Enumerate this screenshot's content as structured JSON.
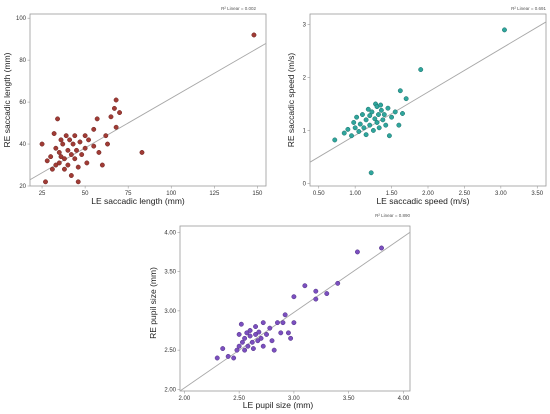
{
  "chart_data": [
    {
      "type": "scatter",
      "title": "",
      "xlabel": "LE saccadic length (mm)",
      "ylabel": "RE saccadic length (mm)",
      "r2_label": "R² Linear = 0.002",
      "xlim": [
        18,
        155
      ],
      "ylim": [
        20,
        102
      ],
      "xticks": [
        25,
        50,
        75,
        100,
        125,
        150
      ],
      "yticks": [
        20,
        40,
        60,
        80,
        100
      ],
      "marker_color": "#a03b35",
      "marker_edge": "#6e2420",
      "fit_line": {
        "x": [
          18,
          155
        ],
        "y": [
          23,
          88
        ]
      },
      "points": [
        [
          25,
          40
        ],
        [
          27,
          22
        ],
        [
          28,
          32
        ],
        [
          30,
          34
        ],
        [
          31,
          28
        ],
        [
          32,
          45
        ],
        [
          33,
          38
        ],
        [
          33,
          30
        ],
        [
          34,
          52
        ],
        [
          35,
          36
        ],
        [
          35,
          31
        ],
        [
          36,
          42
        ],
        [
          36,
          34
        ],
        [
          37,
          40
        ],
        [
          38,
          33
        ],
        [
          38,
          28
        ],
        [
          39,
          44
        ],
        [
          40,
          37
        ],
        [
          40,
          30
        ],
        [
          41,
          42
        ],
        [
          42,
          35
        ],
        [
          42,
          25
        ],
        [
          43,
          40
        ],
        [
          44,
          44
        ],
        [
          44,
          33
        ],
        [
          45,
          37
        ],
        [
          46,
          29
        ],
        [
          46,
          22
        ],
        [
          47,
          41
        ],
        [
          48,
          35
        ],
        [
          50,
          44
        ],
        [
          50,
          38
        ],
        [
          51,
          31
        ],
        [
          52,
          42
        ],
        [
          55,
          47
        ],
        [
          55,
          39
        ],
        [
          57,
          52
        ],
        [
          58,
          36
        ],
        [
          60,
          30
        ],
        [
          62,
          44
        ],
        [
          63,
          40
        ],
        [
          65,
          53
        ],
        [
          67,
          57
        ],
        [
          68,
          61
        ],
        [
          68,
          48
        ],
        [
          70,
          55
        ],
        [
          83,
          36
        ],
        [
          148,
          92
        ]
      ]
    },
    {
      "type": "scatter",
      "title": "",
      "xlabel": "LE saccadic speed (m/s)",
      "ylabel": "RE saccadic speed (m/s)",
      "r2_label": "R² Linear = 0.691",
      "xlim": [
        0.38,
        3.62
      ],
      "ylim": [
        -0.05,
        3.2
      ],
      "xticks": [
        0.5,
        1.0,
        1.5,
        2.0,
        2.5,
        3.0,
        3.5
      ],
      "xtick_labels": [
        "0.50",
        "1.00",
        "1.50",
        "2.00",
        "2.50",
        "3.00",
        "3.50"
      ],
      "yticks": [
        0,
        1,
        2,
        3
      ],
      "marker_color": "#2fa59c",
      "marker_edge": "#1a6e68",
      "fit_line": {
        "x": [
          0.38,
          3.62
        ],
        "y": [
          0.4,
          3.05
        ]
      },
      "points": [
        [
          0.72,
          0.82
        ],
        [
          0.85,
          0.95
        ],
        [
          0.9,
          1.02
        ],
        [
          0.95,
          0.9
        ],
        [
          0.98,
          1.15
        ],
        [
          1.0,
          1.05
        ],
        [
          1.02,
          1.25
        ],
        [
          1.05,
          0.98
        ],
        [
          1.07,
          1.12
        ],
        [
          1.1,
          1.3
        ],
        [
          1.12,
          1.05
        ],
        [
          1.15,
          1.2
        ],
        [
          1.15,
          0.92
        ],
        [
          1.18,
          1.4
        ],
        [
          1.2,
          1.1
        ],
        [
          1.2,
          1.28
        ],
        [
          1.22,
          0.2
        ],
        [
          1.23,
          1.35
        ],
        [
          1.25,
          1.0
        ],
        [
          1.27,
          1.22
        ],
        [
          1.28,
          1.5
        ],
        [
          1.3,
          1.15
        ],
        [
          1.3,
          1.45
        ],
        [
          1.32,
          1.3
        ],
        [
          1.33,
          1.05
        ],
        [
          1.35,
          1.48
        ],
        [
          1.36,
          1.38
        ],
        [
          1.38,
          1.2
        ],
        [
          1.4,
          1.3
        ],
        [
          1.42,
          1.1
        ],
        [
          1.45,
          1.42
        ],
        [
          1.47,
          0.9
        ],
        [
          1.5,
          1.25
        ],
        [
          1.55,
          1.35
        ],
        [
          1.6,
          1.1
        ],
        [
          1.62,
          1.75
        ],
        [
          1.65,
          1.32
        ],
        [
          1.7,
          1.6
        ],
        [
          1.9,
          2.15
        ],
        [
          3.05,
          2.9
        ]
      ]
    },
    {
      "type": "scatter",
      "title": "",
      "xlabel": "LE pupil size (mm)",
      "ylabel": "RE pupil size (mm)",
      "r2_label": "R² Linear = 0.890",
      "xlim": [
        1.96,
        4.06
      ],
      "ylim": [
        1.98,
        4.08
      ],
      "xticks": [
        2.0,
        2.5,
        3.0,
        3.5,
        4.0
      ],
      "xtick_labels": [
        "2.00",
        "2.50",
        "3.00",
        "3.50",
        "4.00"
      ],
      "yticks": [
        2.0,
        2.5,
        3.0,
        3.5,
        4.0
      ],
      "ytick_labels": [
        "2.00",
        "2.50",
        "3.00",
        "3.50",
        "4.00"
      ],
      "marker_color": "#7b4fbf",
      "marker_edge": "#4e2f82",
      "fit_line": {
        "x": [
          1.96,
          4.06
        ],
        "y": [
          1.98,
          4.0
        ]
      },
      "points": [
        [
          2.3,
          2.4
        ],
        [
          2.35,
          2.52
        ],
        [
          2.4,
          2.42
        ],
        [
          2.45,
          2.4
        ],
        [
          2.48,
          2.5
        ],
        [
          2.5,
          2.55
        ],
        [
          2.5,
          2.7
        ],
        [
          2.52,
          2.83
        ],
        [
          2.53,
          2.6
        ],
        [
          2.55,
          2.5
        ],
        [
          2.55,
          2.65
        ],
        [
          2.57,
          2.72
        ],
        [
          2.58,
          2.55
        ],
        [
          2.6,
          2.68
        ],
        [
          2.6,
          2.75
        ],
        [
          2.62,
          2.6
        ],
        [
          2.63,
          2.52
        ],
        [
          2.65,
          2.7
        ],
        [
          2.65,
          2.8
        ],
        [
          2.67,
          2.62
        ],
        [
          2.68,
          2.73
        ],
        [
          2.7,
          2.65
        ],
        [
          2.72,
          2.55
        ],
        [
          2.72,
          2.85
        ],
        [
          2.75,
          2.7
        ],
        [
          2.78,
          2.78
        ],
        [
          2.8,
          2.62
        ],
        [
          2.82,
          2.5
        ],
        [
          2.85,
          2.85
        ],
        [
          2.88,
          2.72
        ],
        [
          2.9,
          2.85
        ],
        [
          2.92,
          2.95
        ],
        [
          2.95,
          2.72
        ],
        [
          2.97,
          2.65
        ],
        [
          3.0,
          2.85
        ],
        [
          3.0,
          3.18
        ],
        [
          3.1,
          3.32
        ],
        [
          3.2,
          3.15
        ],
        [
          3.2,
          3.25
        ],
        [
          3.3,
          3.22
        ],
        [
          3.4,
          3.35
        ],
        [
          3.58,
          3.75
        ],
        [
          3.8,
          3.8
        ]
      ]
    }
  ]
}
